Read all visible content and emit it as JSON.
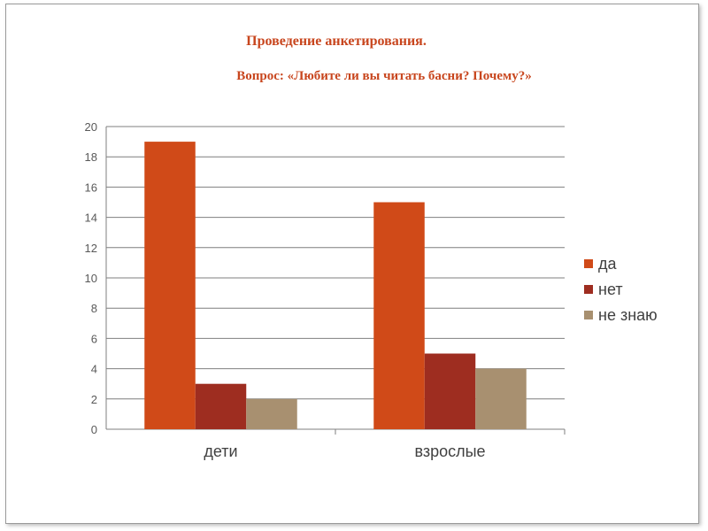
{
  "page": {
    "title": "Проведение анкетирования.",
    "subtitle": "Вопрос: «Любите ли вы читать басни? Почему?»"
  },
  "chart_data": {
    "type": "bar",
    "categories": [
      "дети",
      "взрослые"
    ],
    "series": [
      {
        "name": "да",
        "values": [
          19,
          15
        ],
        "color": "#d04a18"
      },
      {
        "name": "нет",
        "values": [
          3,
          5
        ],
        "color": "#9e2d20"
      },
      {
        "name": "не знаю",
        "values": [
          2,
          4
        ],
        "color": "#a89070"
      }
    ],
    "ylim": [
      0,
      20
    ],
    "yticks": [
      0,
      2,
      4,
      6,
      8,
      10,
      12,
      14,
      16,
      18,
      20
    ],
    "grid": true,
    "legend": "right"
  }
}
